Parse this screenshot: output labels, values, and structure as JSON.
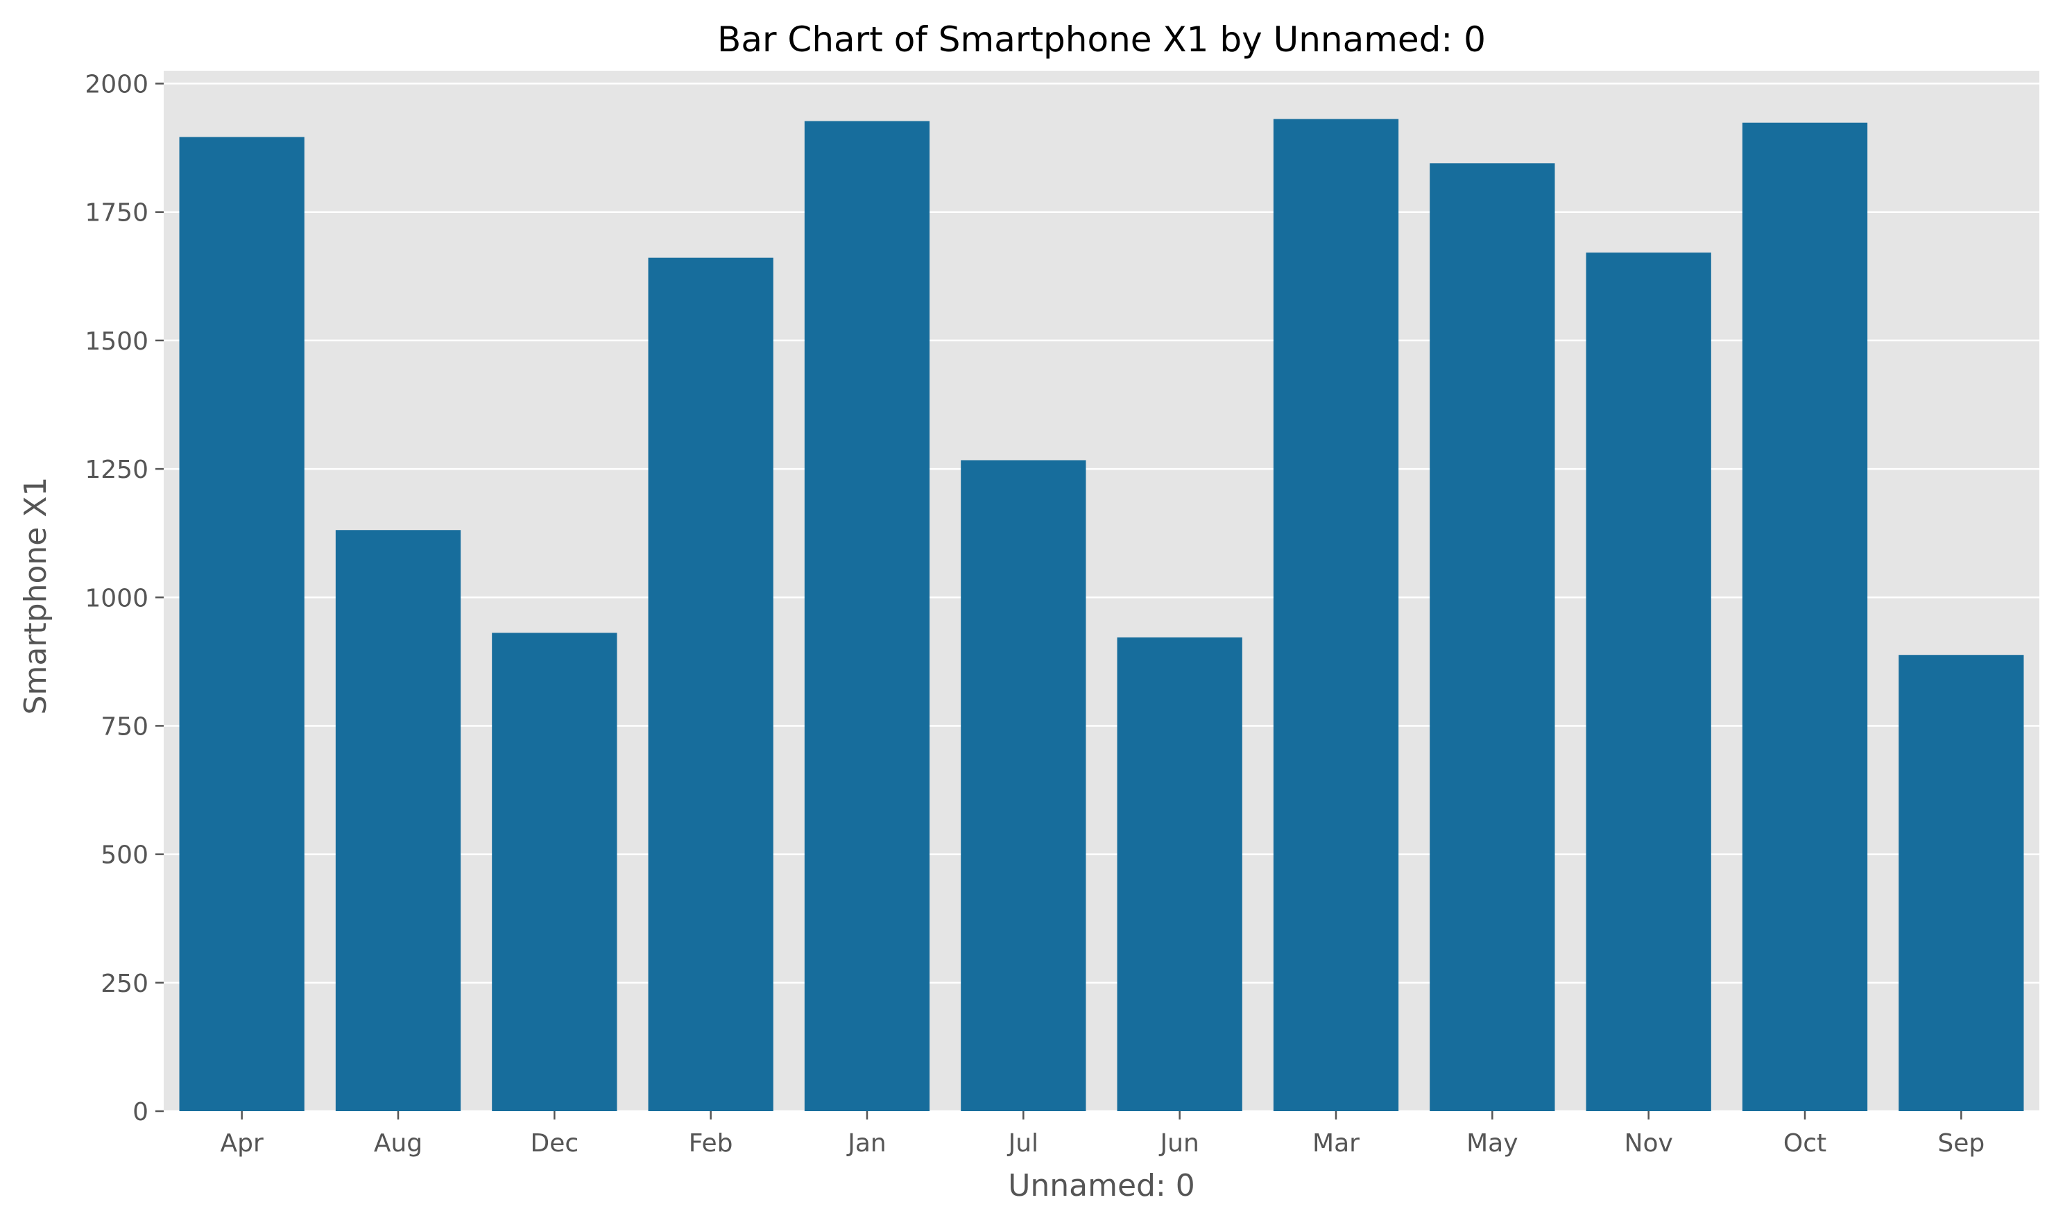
{
  "chart_data": {
    "type": "bar",
    "title": "Bar Chart of Smartphone X1 by Unnamed: 0",
    "xlabel": "Unnamed: 0",
    "ylabel": "Smartphone X1",
    "categories": [
      "Apr",
      "Aug",
      "Dec",
      "Feb",
      "Jan",
      "Jul",
      "Jun",
      "Mar",
      "May",
      "Nov",
      "Oct",
      "Sep"
    ],
    "values": [
      1896,
      1131,
      931,
      1661,
      1927,
      1267,
      922,
      1931,
      1845,
      1671,
      1924,
      888
    ],
    "ylim": [
      0,
      2025
    ],
    "yticks": [
      0,
      250,
      500,
      750,
      1000,
      1250,
      1500,
      1750,
      2000
    ],
    "ytick_labels": [
      "0",
      "250",
      "500",
      "750",
      "1000",
      "1250",
      "1500",
      "1750",
      "2000"
    ],
    "grid": true,
    "colors": {
      "bar": "#176d9c",
      "plot_background": "#e5e5e5",
      "grid": "#ffffff"
    }
  }
}
